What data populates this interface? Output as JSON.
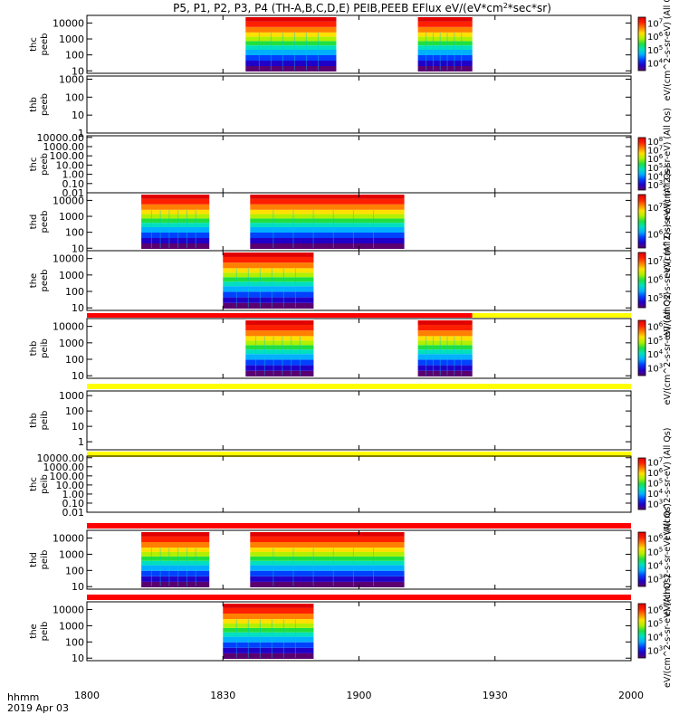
{
  "chart_data": {
    "type": "heatmap",
    "title": "P5, P1, P2, P3, P4 (TH-A,B,C,D,E) PEIB,PEEB EFlux eV/(eV*cm",
    "title_sup": "2",
    "title_end": "*sec*sr)",
    "xlabel": "hhmm",
    "date_label": "2019 Apr 03",
    "x_ticks": [
      "1800",
      "1830",
      "1900",
      "1930",
      "2000"
    ],
    "xlim": [
      "18:00",
      "20:00"
    ],
    "panels": [
      {
        "id": "thc-peeb",
        "label": [
          "thc",
          "peeb"
        ],
        "y_ticks": [
          "10",
          "100",
          "1000",
          "10000"
        ],
        "ylim": [
          7,
          30000
        ],
        "log": true,
        "intervals": [
          [
            "18:35",
            "18:55"
          ],
          [
            "19:13",
            "19:25"
          ]
        ],
        "colorbar_label": "eV/(cm^2-s-sr-eV) (All Qs)",
        "colorbar_ticks": [
          "10^4",
          "10^5",
          "10^6",
          "10^7"
        ]
      },
      {
        "id": "thb-peeb",
        "label": [
          "thb",
          "peeb"
        ],
        "y_ticks": [
          "1",
          "10",
          "100",
          "1000"
        ],
        "ylim": [
          1,
          1500
        ],
        "log": true,
        "intervals": [],
        "colorbar_label": "",
        "colorbar_ticks": []
      },
      {
        "id": "thc-peeb-2",
        "label": [
          "thc",
          "peeb"
        ],
        "y_ticks": [
          "0.01",
          "0.10",
          "1.00",
          "10.00",
          "100.00",
          "1000.00",
          "10000.00"
        ],
        "ylim": [
          0.01,
          15000
        ],
        "log": true,
        "intervals": [],
        "colorbar_label": "eV/(cm^2-s-sr-eV) (All Qs)",
        "colorbar_ticks": [
          "10^3",
          "10^4",
          "10^5",
          "10^6",
          "10^7",
          "10^8"
        ]
      },
      {
        "id": "thd-peeb",
        "label": [
          "thd",
          "peeb"
        ],
        "y_ticks": [
          "10",
          "100",
          "1000",
          "10000"
        ],
        "ylim": [
          7,
          30000
        ],
        "log": true,
        "intervals": [
          [
            "18:12",
            "18:27"
          ],
          [
            "18:36",
            "19:10"
          ]
        ],
        "colorbar_label": "eV/(cm^2-s-sr-eV) (All Qs)",
        "colorbar_ticks": [
          "10^6",
          "10^7"
        ]
      },
      {
        "id": "the-peeb",
        "label": [
          "the",
          "peeb"
        ],
        "y_ticks": [
          "10",
          "100",
          "1000",
          "10000"
        ],
        "ylim": [
          7,
          30000
        ],
        "log": true,
        "intervals": [
          [
            "18:30",
            "18:50"
          ]
        ],
        "colorbar_label": "eV/(cm^2-s-sr-eV) (All Qs)",
        "colorbar_ticks": [
          "10^5",
          "10^6",
          "10^7"
        ]
      },
      {
        "id": "thb-peib",
        "label": [
          "thb",
          "peib"
        ],
        "y_ticks": [
          "10",
          "100",
          "1000",
          "10000"
        ],
        "ylim": [
          7,
          30000
        ],
        "log": true,
        "intervals": [
          [
            "18:35",
            "18:50"
          ],
          [
            "19:13",
            "19:25"
          ]
        ],
        "colorbar_label": "eV/(cm^2-s-sr-eV) (All Qs)",
        "colorbar_ticks": [
          "10^3",
          "10^4",
          "10^5",
          "10^6"
        ]
      },
      {
        "id": "thb-peib-2",
        "label": [
          "thb",
          "peib"
        ],
        "y_ticks": [
          "1",
          "10",
          "100",
          "1000"
        ],
        "ylim": [
          0.3,
          2000
        ],
        "log": true,
        "intervals": [],
        "colorbar_label": "",
        "colorbar_ticks": []
      },
      {
        "id": "thc-peib",
        "label": [
          "thc",
          "peib"
        ],
        "y_ticks": [
          "0.01",
          "0.10",
          "1.00",
          "10.00",
          "100.00",
          "1000.00",
          "10000.00"
        ],
        "ylim": [
          0.01,
          15000
        ],
        "log": true,
        "intervals": [],
        "colorbar_label": "eV/(cm^2-s-sr-eV) (All Qs)",
        "colorbar_ticks": [
          "10^3",
          "10^4",
          "10^5",
          "10^6",
          "10^7"
        ]
      },
      {
        "id": "thd-peib",
        "label": [
          "thd",
          "peib"
        ],
        "y_ticks": [
          "10",
          "100",
          "1000",
          "10000"
        ],
        "ylim": [
          7,
          30000
        ],
        "log": true,
        "intervals": [
          [
            "18:12",
            "18:27"
          ],
          [
            "18:36",
            "19:10"
          ]
        ],
        "colorbar_label": "eV/(cm^2-s-sr-eV) (All Qs)",
        "colorbar_ticks": [
          "10^3",
          "10^4",
          "10^5",
          "10^6"
        ]
      },
      {
        "id": "the-peib",
        "label": [
          "the",
          "peib"
        ],
        "y_ticks": [
          "10",
          "100",
          "1000",
          "10000"
        ],
        "ylim": [
          7,
          30000
        ],
        "log": true,
        "intervals": [
          [
            "18:30",
            "18:50"
          ]
        ],
        "colorbar_label": "eV/(cm^2-s-sr-eV) (All Qs)",
        "colorbar_ticks": [
          "10^3",
          "10^4",
          "10^5",
          "10^6"
        ]
      }
    ],
    "mode_bars": [
      {
        "after_panel": "the-peeb",
        "segments": [
          {
            "start": "18:00",
            "end": "19:25",
            "color": "#ff0000"
          },
          {
            "start": "19:25",
            "end": "20:00",
            "color": "#ffff00"
          }
        ]
      },
      {
        "after_panel": "thb-peib",
        "segments": [
          {
            "start": "18:00",
            "end": "20:00",
            "color": "#ffff00"
          }
        ]
      },
      {
        "after_panel": "thb-peib-2",
        "segments": [
          {
            "start": "18:00",
            "end": "20:00",
            "color": "#ffff00"
          }
        ]
      },
      {
        "after_panel": "thc-peib",
        "segments": [
          {
            "start": "18:00",
            "end": "20:00",
            "color": "#ff0000"
          }
        ]
      },
      {
        "after_panel": "thd-peib",
        "segments": [
          {
            "start": "18:00",
            "end": "20:00",
            "color": "#ff0000"
          }
        ]
      }
    ],
    "colormap": [
      "#5a0070",
      "#2000c8",
      "#0040ff",
      "#00b0ff",
      "#00e0c0",
      "#20e040",
      "#b0f000",
      "#ffe000",
      "#ff8000",
      "#ff2000",
      "#e00000"
    ],
    "legend": "colorbars right of each panel"
  }
}
